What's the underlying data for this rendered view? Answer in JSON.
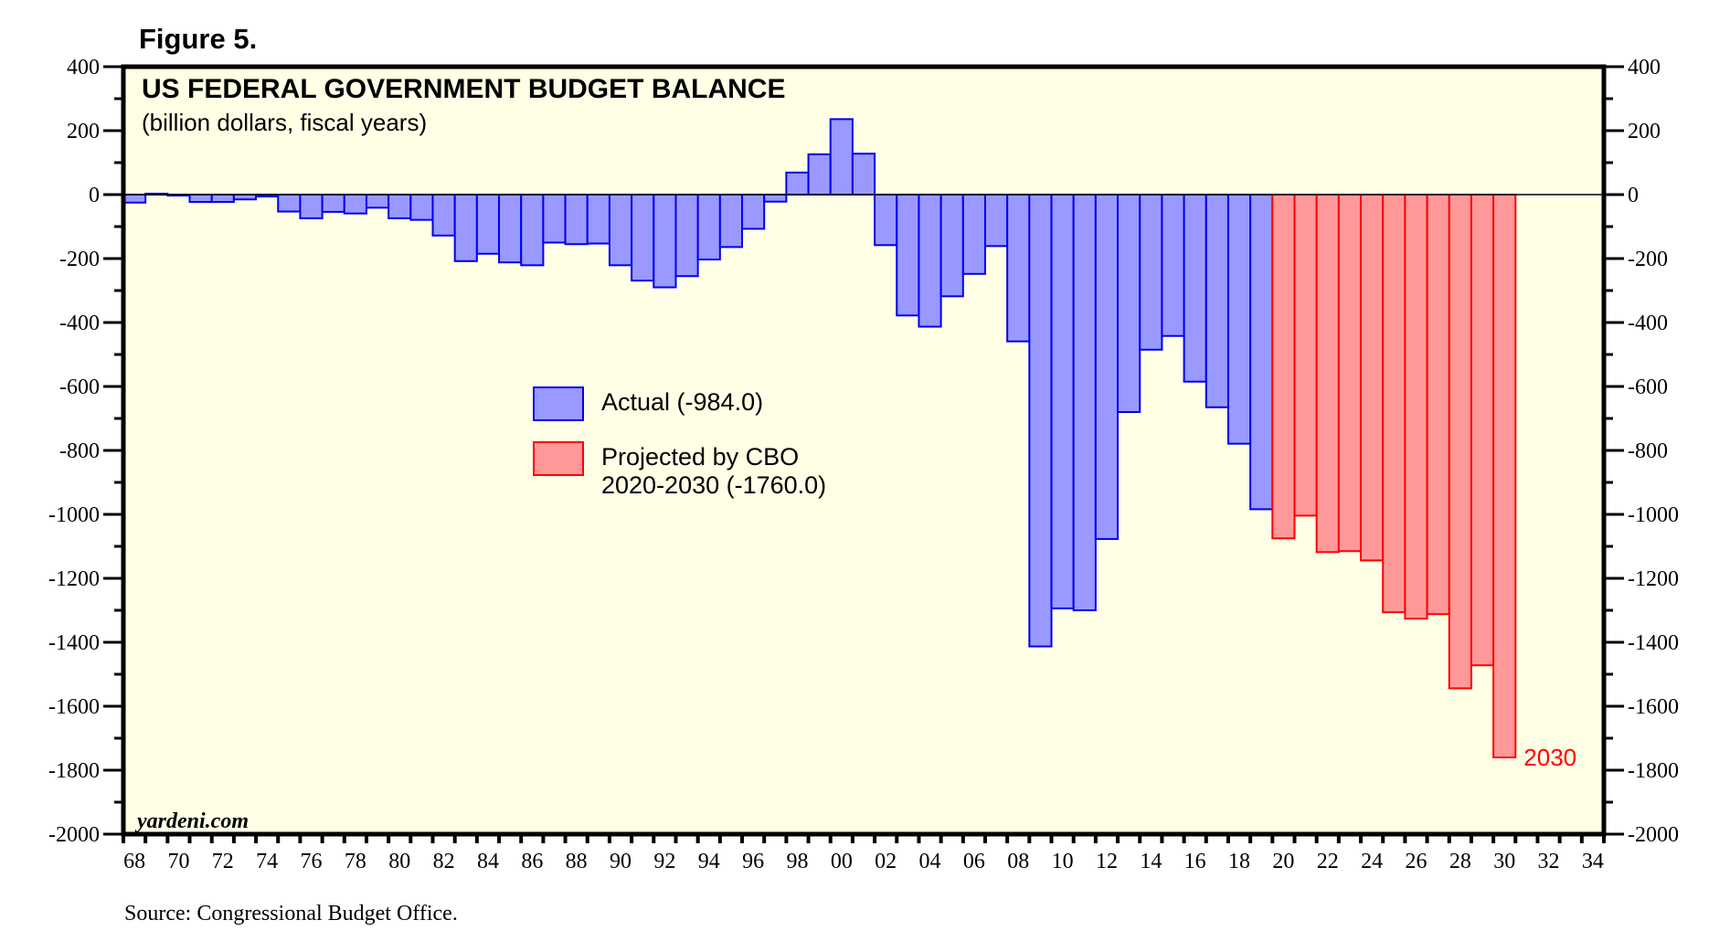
{
  "figure_label": "Figure 5.",
  "source_note": "Source: Congressional Budget Office.",
  "watermark": "yardeni.com",
  "colors": {
    "background": "#FFFFE6",
    "actual_fill": "#9999FF",
    "actual_stroke": "#0000EE",
    "projected_fill": "#FF9999",
    "projected_stroke": "#FF0000",
    "annotation": "#FF0000"
  },
  "chart_data": {
    "type": "bar",
    "title": "US FEDERAL GOVERNMENT BUDGET BALANCE",
    "subtitle": "(billion dollars, fiscal years)",
    "xlabel": "",
    "ylabel": "",
    "ylim": [
      -2000,
      400
    ],
    "xlim": [
      1968,
      2034
    ],
    "y_ticks": [
      400,
      200,
      0,
      -200,
      -400,
      -600,
      -800,
      -1000,
      -1200,
      -1400,
      -1600,
      -1800,
      -2000
    ],
    "y_tick_labels": [
      "400",
      "200",
      "0",
      "-200",
      "-400",
      "-600",
      "-800",
      "-1000",
      "-1200",
      "-1400",
      "-1600",
      "-1800",
      "-2000"
    ],
    "x_tick_labels": [
      "68",
      "70",
      "72",
      "74",
      "76",
      "78",
      "80",
      "82",
      "84",
      "86",
      "88",
      "90",
      "92",
      "94",
      "96",
      "98",
      "00",
      "02",
      "04",
      "06",
      "08",
      "10",
      "12",
      "14",
      "16",
      "18",
      "20",
      "22",
      "24",
      "26",
      "28",
      "30",
      "32",
      "34"
    ],
    "grid": false,
    "axes": "left-and-right",
    "legend_placement": "center",
    "series": [
      {
        "name": "Actual",
        "legend_label": "Actual (-984.0)",
        "x": [
          1968,
          1969,
          1970,
          1971,
          1972,
          1973,
          1974,
          1975,
          1976,
          1977,
          1978,
          1979,
          1980,
          1981,
          1982,
          1983,
          1984,
          1985,
          1986,
          1987,
          1988,
          1989,
          1990,
          1991,
          1992,
          1993,
          1994,
          1995,
          1996,
          1997,
          1998,
          1999,
          2000,
          2001,
          2002,
          2003,
          2004,
          2005,
          2006,
          2007,
          2008,
          2009,
          2010,
          2011,
          2012,
          2013,
          2014,
          2015,
          2016,
          2017,
          2018,
          2019
        ],
        "values": [
          -25,
          3,
          -3,
          -23,
          -23,
          -15,
          -6,
          -53,
          -74,
          -54,
          -59,
          -41,
          -74,
          -79,
          -128,
          -208,
          -185,
          -212,
          -221,
          -150,
          -155,
          -153,
          -221,
          -269,
          -290,
          -255,
          -203,
          -164,
          -107,
          -22,
          69,
          126,
          236,
          128,
          -158,
          -378,
          -413,
          -318,
          -248,
          -161,
          -459,
          -1413,
          -1294,
          -1300,
          -1077,
          -680,
          -485,
          -442,
          -585,
          -665,
          -779,
          -984
        ]
      },
      {
        "name": "Projected by CBO 2020-2030",
        "legend_label_lines": [
          "Projected by CBO",
          "2020-2030 (-1760.0)"
        ],
        "x": [
          2020,
          2021,
          2022,
          2023,
          2024,
          2025,
          2026,
          2027,
          2028,
          2029,
          2030
        ],
        "values": [
          -1075,
          -1004,
          -1118,
          -1115,
          -1144,
          -1306,
          -1326,
          -1312,
          -1544,
          -1472,
          -1760
        ]
      }
    ],
    "annotations": [
      {
        "text": "2030",
        "x": 2030,
        "y": -1760
      }
    ]
  }
}
